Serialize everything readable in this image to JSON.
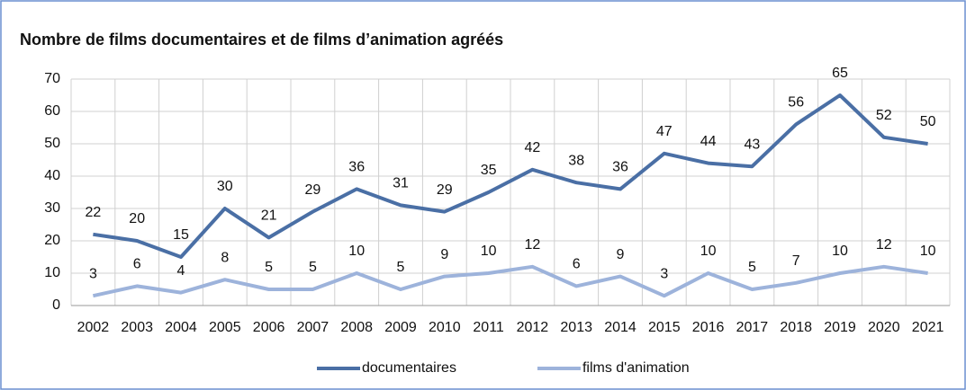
{
  "chart_data": {
    "type": "line",
    "title": "Nombre de films documentaires et de films d’animation agréés",
    "categories": [
      "2002",
      "2003",
      "2004",
      "2005",
      "2006",
      "2007",
      "2008",
      "2009",
      "2010",
      "2011",
      "2012",
      "2013",
      "2014",
      "2015",
      "2016",
      "2017",
      "2018",
      "2019",
      "2020",
      "2021"
    ],
    "series": [
      {
        "name": "documentaires",
        "color": "#4a6fa5",
        "values": [
          22,
          20,
          15,
          30,
          21,
          29,
          36,
          31,
          29,
          35,
          42,
          38,
          36,
          47,
          44,
          43,
          56,
          65,
          52,
          50
        ]
      },
      {
        "name": "films d'animation",
        "color": "#9db3db",
        "values": [
          3,
          6,
          4,
          8,
          5,
          5,
          10,
          5,
          9,
          10,
          12,
          6,
          9,
          3,
          10,
          5,
          7,
          10,
          12,
          10
        ]
      }
    ],
    "ylim": [
      0,
      70
    ],
    "yticks": [
      0,
      10,
      20,
      30,
      40,
      50,
      60,
      70
    ],
    "grid": true,
    "legend": "bottom"
  }
}
